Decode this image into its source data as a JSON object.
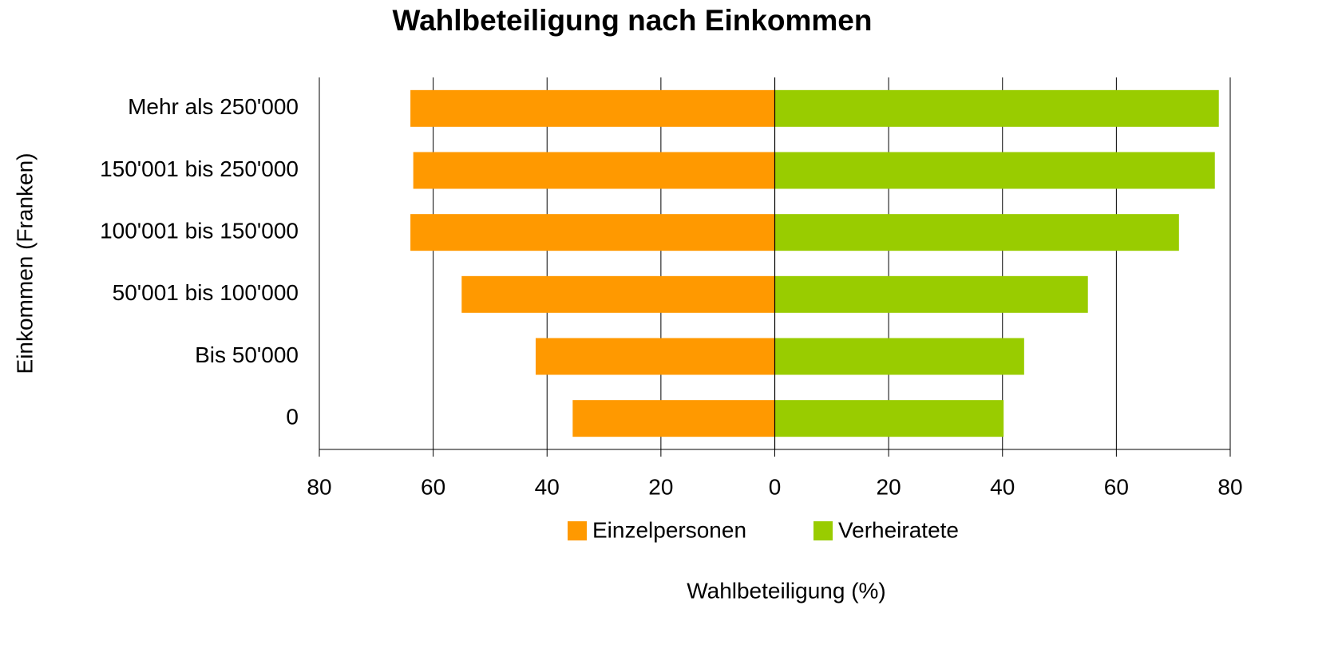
{
  "chart_data": {
    "type": "bar",
    "orientation": "horizontal",
    "title": "Wahlbeteiligung nach Einkommen",
    "x_label": "Wahlbeteiligung (%)",
    "y_label": "Einkommen (Franken)",
    "categories": [
      "Mehr als 250'000",
      "150'001 bis 250'000",
      "100'001 bis 150'000",
      "50'001 bis 100'000",
      "Bis 50'000",
      "0"
    ],
    "series": [
      {
        "name": "Einzelpersonen",
        "color": "#ff9900",
        "values": [
          -64,
          -63.5,
          -64,
          -55,
          -42,
          -35.5
        ]
      },
      {
        "name": "Verheiratete",
        "color": "#99cc00",
        "values": [
          78,
          77.3,
          71,
          55,
          43.8,
          40.2
        ]
      }
    ],
    "xlim": [
      -80,
      80
    ],
    "xticks": [
      {
        "value": -80,
        "label": "80"
      },
      {
        "value": -60,
        "label": "60"
      },
      {
        "value": -40,
        "label": "40"
      },
      {
        "value": -20,
        "label": "20"
      },
      0,
      20,
      40,
      60,
      80
    ],
    "grid": true,
    "legend": "bottom"
  }
}
